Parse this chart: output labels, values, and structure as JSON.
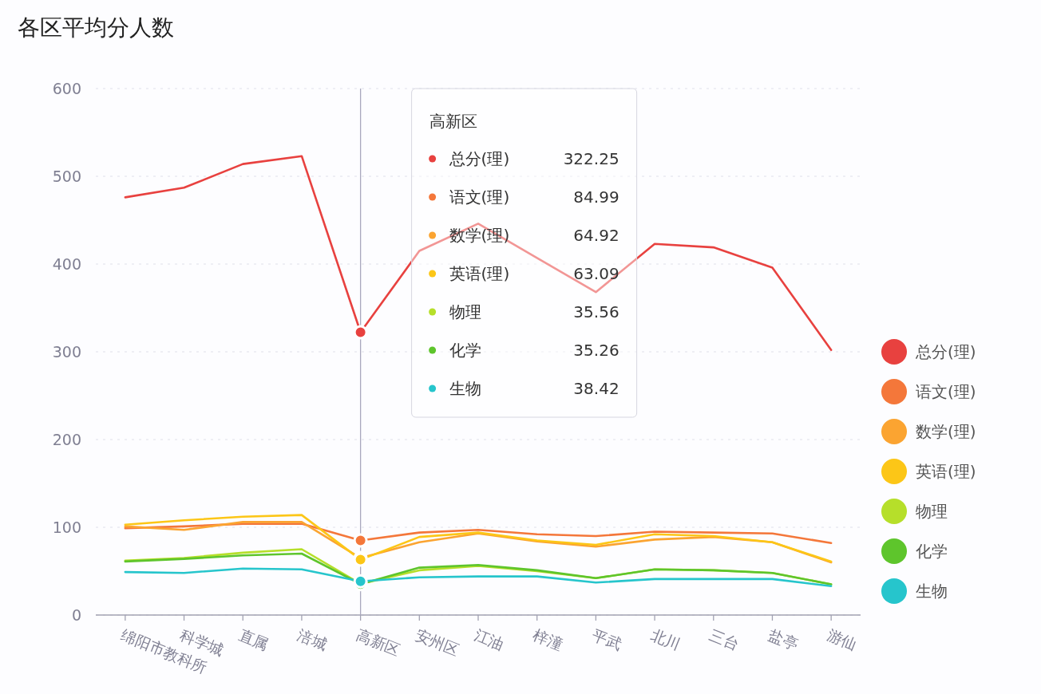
{
  "chart_data": {
    "type": "line",
    "title": "各区平均分人数",
    "categories": [
      "绵阳市教科所",
      "科学城",
      "直属",
      "涪城",
      "高新区",
      "安州区",
      "江油",
      "梓潼",
      "平武",
      "北川",
      "三台",
      "盐亭",
      "游仙"
    ],
    "series": [
      {
        "name": "总分(理)",
        "color": "#e8413f",
        "values": [
          476,
          487,
          514,
          523,
          322.25,
          415,
          446,
          407,
          368,
          423,
          419,
          396,
          302
        ]
      },
      {
        "name": "语文(理)",
        "color": "#f4773a",
        "values": [
          99,
          101,
          104,
          104,
          84.99,
          94,
          97,
          92,
          90,
          95,
          94,
          93,
          82
        ]
      },
      {
        "name": "数学(理)",
        "color": "#fba431",
        "values": [
          101,
          97,
          106,
          106,
          64.92,
          83,
          93,
          84,
          78,
          86,
          89,
          83,
          60
        ]
      },
      {
        "name": "英语(理)",
        "color": "#fcc617",
        "values": [
          103,
          108,
          112,
          114,
          63.09,
          89,
          94,
          85,
          80,
          92,
          90,
          83,
          61
        ]
      },
      {
        "name": "物理",
        "color": "#b6df2a",
        "values": [
          62,
          65,
          71,
          75,
          35.56,
          51,
          56,
          50,
          42,
          52,
          51,
          48,
          35
        ]
      },
      {
        "name": "化学",
        "color": "#5ec52c",
        "values": [
          61,
          64,
          68,
          70,
          35.26,
          54,
          57,
          51,
          42,
          52,
          51,
          48,
          35
        ]
      },
      {
        "name": "生物",
        "color": "#26c5cc",
        "values": [
          49,
          48,
          53,
          52,
          38.42,
          43,
          44,
          44,
          37,
          41,
          41,
          41,
          33
        ]
      }
    ],
    "ylim": [
      0,
      600
    ],
    "yticks": [
      0,
      100,
      200,
      300,
      400,
      500,
      600
    ],
    "grid": "y",
    "legend": "right",
    "ref_lines": [
      {
        "axis": "x",
        "value": "高新区",
        "color": "#a9a8bd"
      }
    ],
    "annotations": [
      "高新区",
      "322.25",
      "84.99",
      "64.92",
      "63.09",
      "35.56",
      "35.26",
      "38.42"
    ]
  }
}
